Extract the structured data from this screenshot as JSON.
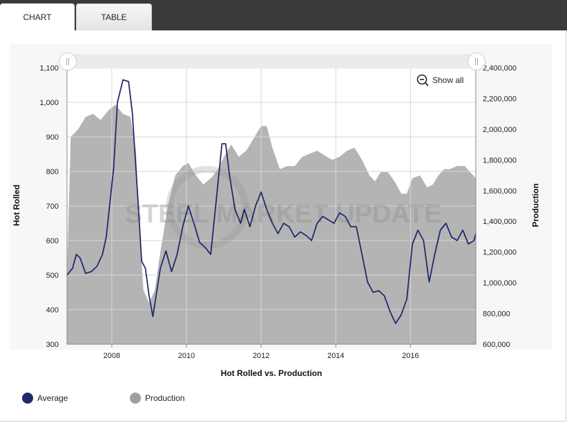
{
  "tabs": [
    {
      "label": "CHART"
    },
    {
      "label": "TABLE"
    }
  ],
  "show_all_label": "Show all",
  "watermark": "STEEL MARKET UPDATE",
  "colors": {
    "average": "#1f2a6b",
    "production": "#9e9e9e",
    "production_fill": "#b4b4b4"
  },
  "chart_data": {
    "type": "line+area",
    "title": "Hot Rolled vs. Production",
    "ylabel_left": "Hot Rolled",
    "ylabel_right": "Production",
    "ylim_left": [
      300,
      1100
    ],
    "ylim_right": [
      600000,
      2400000
    ],
    "yticks_left": [
      "300",
      "400",
      "500",
      "600",
      "700",
      "800",
      "900",
      "1,000",
      "1,100"
    ],
    "yticks_right": [
      "600,000",
      "800,000",
      "1,000,000",
      "1,200,000",
      "1,400,000",
      "1,600,000",
      "1,800,000",
      "2,000,000",
      "2,200,000",
      "2,400,000"
    ],
    "xticks": [
      "2008",
      "2010",
      "2012",
      "2014",
      "2016"
    ],
    "xlim": [
      2006.8,
      2017.75
    ],
    "legend_position": "bottom-left",
    "series": [
      {
        "name": "Average",
        "axis": "left",
        "x": [
          2006.8,
          2006.95,
          2007.05,
          2007.15,
          2007.3,
          2007.45,
          2007.6,
          2007.75,
          2007.85,
          2007.95,
          2008.05,
          2008.15,
          2008.3,
          2008.45,
          2008.55,
          2008.7,
          2008.8,
          2008.9,
          2009.0,
          2009.1,
          2009.2,
          2009.3,
          2009.45,
          2009.6,
          2009.75,
          2009.9,
          2010.05,
          2010.2,
          2010.35,
          2010.5,
          2010.65,
          2010.8,
          2010.95,
          2011.05,
          2011.15,
          2011.3,
          2011.45,
          2011.55,
          2011.7,
          2011.85,
          2012.0,
          2012.15,
          2012.3,
          2012.45,
          2012.6,
          2012.75,
          2012.9,
          2013.05,
          2013.2,
          2013.35,
          2013.5,
          2013.65,
          2013.8,
          2013.95,
          2014.1,
          2014.25,
          2014.4,
          2014.55,
          2014.7,
          2014.85,
          2015.0,
          2015.15,
          2015.3,
          2015.45,
          2015.6,
          2015.75,
          2015.9,
          2016.05,
          2016.2,
          2016.35,
          2016.5,
          2016.65,
          2016.8,
          2016.95,
          2017.1,
          2017.25,
          2017.4,
          2017.55,
          2017.7,
          2017.75
        ],
        "y": [
          500,
          520,
          560,
          550,
          505,
          510,
          525,
          560,
          610,
          710,
          810,
          1000,
          1065,
          1060,
          970,
          720,
          540,
          520,
          440,
          380,
          450,
          520,
          570,
          510,
          560,
          640,
          700,
          650,
          595,
          580,
          560,
          720,
          880,
          880,
          790,
          690,
          650,
          690,
          640,
          700,
          740,
          690,
          650,
          620,
          650,
          640,
          610,
          625,
          615,
          600,
          650,
          670,
          660,
          650,
          680,
          670,
          640,
          640,
          560,
          480,
          450,
          455,
          440,
          395,
          360,
          385,
          430,
          590,
          630,
          600,
          480,
          560,
          630,
          650,
          610,
          600,
          630,
          590,
          600,
          620
        ]
      },
      {
        "name": "Production",
        "axis": "right",
        "x": [
          2006.8,
          2006.9,
          2007.1,
          2007.3,
          2007.5,
          2007.7,
          2007.9,
          2008.1,
          2008.3,
          2008.5,
          2008.65,
          2008.75,
          2008.85,
          2009.0,
          2009.15,
          2009.3,
          2009.5,
          2009.7,
          2009.9,
          2010.05,
          2010.25,
          2010.45,
          2010.65,
          2010.85,
          2011.0,
          2011.2,
          2011.4,
          2011.6,
          2011.8,
          2012.0,
          2012.15,
          2012.3,
          2012.5,
          2012.7,
          2012.9,
          2013.1,
          2013.3,
          2013.5,
          2013.7,
          2013.9,
          2014.1,
          2014.3,
          2014.5,
          2014.7,
          2014.9,
          2015.05,
          2015.2,
          2015.4,
          2015.6,
          2015.75,
          2015.9,
          2016.05,
          2016.25,
          2016.45,
          2016.6,
          2016.75,
          2016.9,
          2017.05,
          2017.25,
          2017.45,
          2017.6,
          2017.75
        ],
        "y": [
          1050000,
          1950000,
          2000000,
          2080000,
          2100000,
          2060000,
          2120000,
          2160000,
          2100000,
          2080000,
          1850000,
          1300000,
          950000,
          870000,
          950000,
          1200000,
          1500000,
          1700000,
          1760000,
          1780000,
          1700000,
          1640000,
          1680000,
          1740000,
          1820000,
          1900000,
          1820000,
          1860000,
          1940000,
          2020000,
          2020000,
          1880000,
          1740000,
          1760000,
          1760000,
          1820000,
          1840000,
          1860000,
          1830000,
          1800000,
          1820000,
          1860000,
          1880000,
          1800000,
          1700000,
          1660000,
          1720000,
          1720000,
          1650000,
          1580000,
          1580000,
          1680000,
          1700000,
          1620000,
          1640000,
          1700000,
          1740000,
          1740000,
          1760000,
          1760000,
          1720000,
          1680000
        ]
      }
    ]
  }
}
